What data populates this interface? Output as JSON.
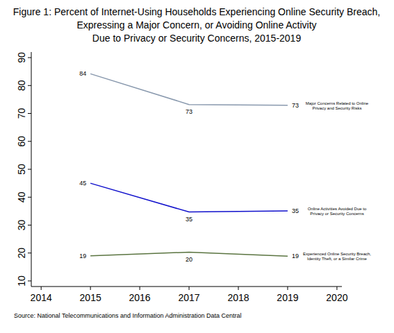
{
  "chart_data": {
    "type": "line",
    "title": "Figure 1: Percent of Internet-Using Households Experiencing Online Security Breach,\nExpressing a Major Concern, or Avoiding Online Activity\nDue to Privacy or Security Concerns, 2015-2019",
    "source": "Source: National Telecommunications and Information Administration Data Central",
    "x": [
      2015,
      2017,
      2019
    ],
    "xlim": [
      2013.8,
      2020.1
    ],
    "xticks": [
      2014,
      2015,
      2016,
      2017,
      2018,
      2019,
      2020
    ],
    "ylim": [
      8,
      92
    ],
    "yticks": [
      10,
      20,
      30,
      40,
      50,
      60,
      70,
      80,
      90
    ],
    "grid": false,
    "data_labels": true,
    "series": [
      {
        "name": "Major Concerns Related to Online Privacy and Security Risks",
        "color": "#8898ad",
        "values": [
          84.2,
          73.2,
          72.9
        ],
        "value_labels": [
          "84",
          "73",
          "73"
        ]
      },
      {
        "name": "Online Activities Avoided Due to Privacy or Security Concerns",
        "color": "#1010cc",
        "values": [
          45.0,
          34.7,
          35.1
        ],
        "value_labels": [
          "45",
          "35",
          "35"
        ]
      },
      {
        "name": "Experienced Online Security Breach, Identity Theft, or a Similar Crime",
        "color": "#5a7440",
        "values": [
          19.0,
          20.3,
          18.9
        ],
        "value_labels": [
          "19",
          "20",
          "19"
        ]
      }
    ]
  }
}
